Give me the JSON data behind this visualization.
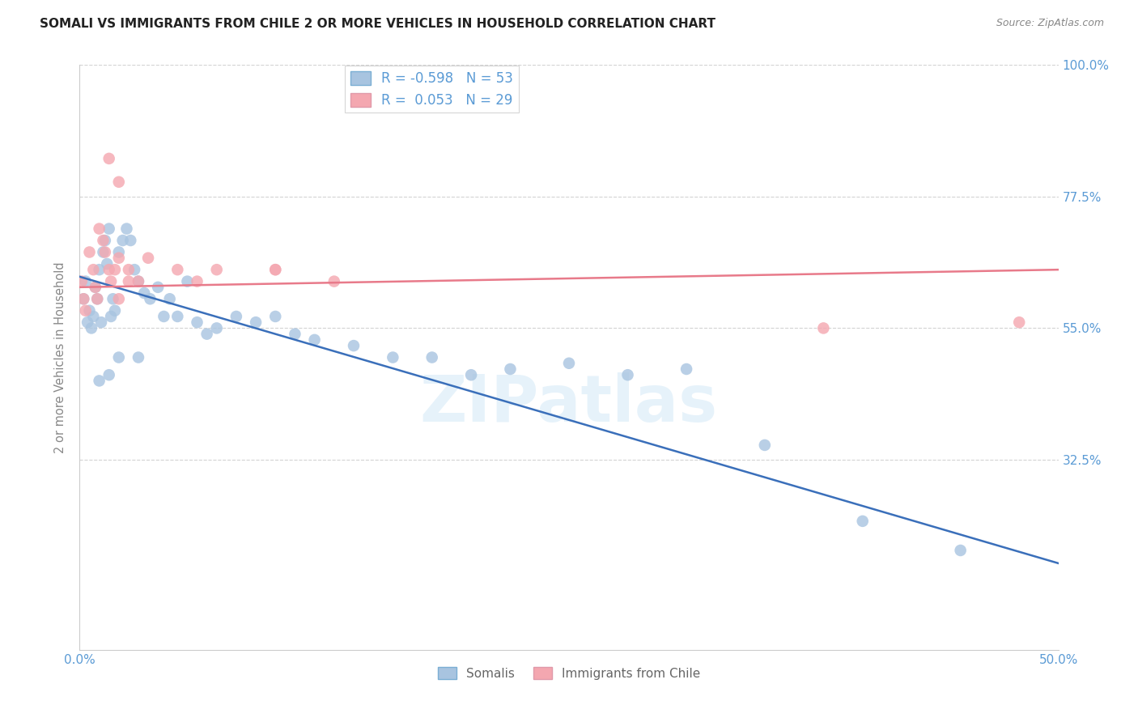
{
  "title": "SOMALI VS IMMIGRANTS FROM CHILE 2 OR MORE VEHICLES IN HOUSEHOLD CORRELATION CHART",
  "source": "Source: ZipAtlas.com",
  "ylabel": "2 or more Vehicles in Household",
  "xlim": [
    0.0,
    0.5
  ],
  "ylim": [
    0.0,
    1.0
  ],
  "somali_R": -0.598,
  "somali_N": 53,
  "chile_R": 0.053,
  "chile_N": 29,
  "legend_label_1": "Somalis",
  "legend_label_2": "Immigrants from Chile",
  "somali_color": "#a8c4e0",
  "chile_color": "#f4a7b0",
  "somali_line_color": "#3a6fba",
  "chile_line_color": "#e87a8a",
  "background_color": "#ffffff",
  "watermark": "ZIPatlas",
  "somali_x": [
    0.002,
    0.003,
    0.004,
    0.005,
    0.006,
    0.007,
    0.008,
    0.009,
    0.01,
    0.011,
    0.012,
    0.013,
    0.014,
    0.015,
    0.016,
    0.017,
    0.018,
    0.02,
    0.022,
    0.024,
    0.026,
    0.028,
    0.03,
    0.033,
    0.036,
    0.04,
    0.043,
    0.046,
    0.05,
    0.055,
    0.06,
    0.065,
    0.07,
    0.08,
    0.09,
    0.1,
    0.11,
    0.12,
    0.14,
    0.16,
    0.18,
    0.2,
    0.22,
    0.25,
    0.28,
    0.31,
    0.01,
    0.015,
    0.02,
    0.03,
    0.35,
    0.4,
    0.45
  ],
  "somali_y": [
    0.6,
    0.63,
    0.56,
    0.58,
    0.55,
    0.57,
    0.62,
    0.6,
    0.65,
    0.56,
    0.68,
    0.7,
    0.66,
    0.72,
    0.57,
    0.6,
    0.58,
    0.68,
    0.7,
    0.72,
    0.7,
    0.65,
    0.63,
    0.61,
    0.6,
    0.62,
    0.57,
    0.6,
    0.57,
    0.63,
    0.56,
    0.54,
    0.55,
    0.57,
    0.56,
    0.57,
    0.54,
    0.53,
    0.52,
    0.5,
    0.5,
    0.47,
    0.48,
    0.49,
    0.47,
    0.48,
    0.46,
    0.47,
    0.5,
    0.5,
    0.35,
    0.22,
    0.17
  ],
  "chile_x": [
    0.001,
    0.002,
    0.003,
    0.005,
    0.007,
    0.008,
    0.009,
    0.01,
    0.012,
    0.013,
    0.015,
    0.016,
    0.018,
    0.02,
    0.025,
    0.03,
    0.035,
    0.05,
    0.06,
    0.07,
    0.1,
    0.02,
    0.025,
    0.1,
    0.13,
    0.015,
    0.02,
    0.38,
    0.48
  ],
  "chile_y": [
    0.63,
    0.6,
    0.58,
    0.68,
    0.65,
    0.62,
    0.6,
    0.72,
    0.7,
    0.68,
    0.65,
    0.63,
    0.65,
    0.67,
    0.65,
    0.63,
    0.67,
    0.65,
    0.63,
    0.65,
    0.65,
    0.6,
    0.63,
    0.65,
    0.63,
    0.84,
    0.8,
    0.55,
    0.56
  ],
  "somali_line_x0": 0.0,
  "somali_line_y0": 0.638,
  "somali_line_x1": 0.5,
  "somali_line_y1": 0.148,
  "chile_line_x0": 0.0,
  "chile_line_y0": 0.62,
  "chile_line_x1": 0.5,
  "chile_line_y1": 0.65
}
